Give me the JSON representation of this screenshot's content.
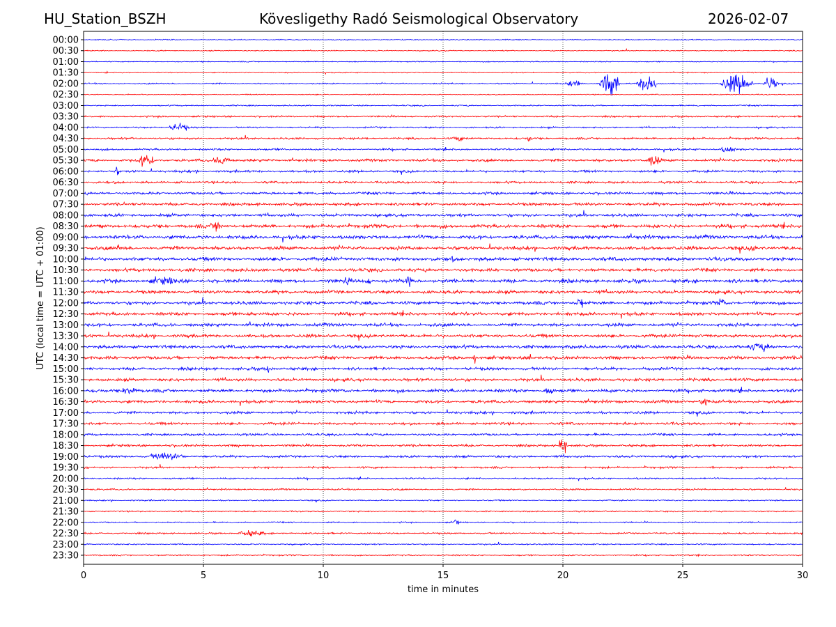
{
  "header": {
    "station": "HU_Station_BSZH",
    "observatory": "Kövesligethy Radó Seismological Observatory",
    "date": "2026-02-07"
  },
  "chart_data": {
    "type": "line",
    "title": "Kövesligethy Radó Seismological Observatory",
    "xlabel": "time in minutes",
    "ylabel": "UTC (local time = UTC + 01:00)",
    "xlim": [
      0,
      30
    ],
    "xticks": [
      0,
      5,
      10,
      15,
      20,
      25,
      30
    ],
    "grid": "vertical dotted at x ticks",
    "row_colors": [
      "#0000ff",
      "#ff0000"
    ],
    "rows": [
      "00:00",
      "00:30",
      "01:00",
      "01:30",
      "02:00",
      "02:30",
      "03:00",
      "03:30",
      "04:00",
      "04:30",
      "05:00",
      "05:30",
      "06:00",
      "06:30",
      "07:00",
      "07:30",
      "08:00",
      "08:30",
      "09:00",
      "09:30",
      "10:00",
      "10:30",
      "11:00",
      "11:30",
      "12:00",
      "12:30",
      "13:00",
      "13:30",
      "14:00",
      "14:30",
      "15:00",
      "15:30",
      "16:00",
      "16:30",
      "17:00",
      "17:30",
      "18:00",
      "18:30",
      "19:00",
      "19:30",
      "20:00",
      "20:30",
      "21:00",
      "21:30",
      "22:00",
      "22:30",
      "23:00",
      "23:30"
    ],
    "noise_level": [
      0.3,
      0.3,
      0.3,
      0.3,
      0.4,
      0.3,
      0.4,
      0.5,
      0.5,
      0.6,
      0.6,
      0.8,
      0.7,
      0.7,
      0.8,
      0.9,
      0.9,
      1.1,
      1.1,
      1.1,
      1.1,
      1.0,
      1.1,
      1.0,
      1.0,
      1.0,
      1.0,
      1.0,
      1.0,
      1.0,
      0.9,
      0.9,
      1.0,
      0.9,
      0.8,
      0.8,
      0.7,
      0.7,
      0.7,
      0.6,
      0.5,
      0.5,
      0.4,
      0.4,
      0.4,
      0.5,
      0.4,
      0.4
    ],
    "events": [
      {
        "row": 4,
        "start": 20.0,
        "end": 21.0,
        "amp": 2
      },
      {
        "row": 4,
        "start": 21.5,
        "end": 22.4,
        "amp": 9
      },
      {
        "row": 4,
        "start": 23.0,
        "end": 24.1,
        "amp": 5
      },
      {
        "row": 4,
        "start": 26.5,
        "end": 28.0,
        "amp": 7
      },
      {
        "row": 4,
        "start": 28.3,
        "end": 29.0,
        "amp": 5
      },
      {
        "row": 8,
        "start": 3.5,
        "end": 4.5,
        "amp": 3
      },
      {
        "row": 9,
        "start": 15.3,
        "end": 16.0,
        "amp": 2
      },
      {
        "row": 9,
        "start": 18.4,
        "end": 18.8,
        "amp": 2.5
      },
      {
        "row": 10,
        "start": 26.5,
        "end": 27.3,
        "amp": 2.5
      },
      {
        "row": 11,
        "start": 2.2,
        "end": 3.0,
        "amp": 5
      },
      {
        "row": 11,
        "start": 5.3,
        "end": 6.2,
        "amp": 3
      },
      {
        "row": 11,
        "start": 23.4,
        "end": 24.2,
        "amp": 4
      },
      {
        "row": 12,
        "start": 1.3,
        "end": 1.5,
        "amp": 4
      },
      {
        "row": 17,
        "start": 5.2,
        "end": 5.9,
        "amp": 4
      },
      {
        "row": 17,
        "start": 0.6,
        "end": 0.9,
        "amp": 3
      },
      {
        "row": 19,
        "start": 1.3,
        "end": 1.6,
        "amp": 3
      },
      {
        "row": 19,
        "start": 27.8,
        "end": 28.1,
        "amp": 3
      },
      {
        "row": 20,
        "start": 15.2,
        "end": 15.5,
        "amp": 3
      },
      {
        "row": 22,
        "start": 2.5,
        "end": 4.4,
        "amp": 3
      },
      {
        "row": 22,
        "start": 10.8,
        "end": 11.2,
        "amp": 4
      },
      {
        "row": 22,
        "start": 11.7,
        "end": 12.0,
        "amp": 3
      },
      {
        "row": 22,
        "start": 13.4,
        "end": 13.8,
        "amp": 6
      },
      {
        "row": 24,
        "start": 20.5,
        "end": 20.9,
        "amp": 5
      },
      {
        "row": 24,
        "start": 26.4,
        "end": 26.8,
        "amp": 4
      },
      {
        "row": 25,
        "start": 6.8,
        "end": 7.1,
        "amp": 3
      },
      {
        "row": 28,
        "start": 27.5,
        "end": 29.0,
        "amp": 3
      },
      {
        "row": 29,
        "start": 16.2,
        "end": 16.4,
        "amp": 4
      },
      {
        "row": 29,
        "start": 18.5,
        "end": 18.7,
        "amp": 4
      },
      {
        "row": 30,
        "start": 7.5,
        "end": 7.9,
        "amp": 3
      },
      {
        "row": 31,
        "start": 27.1,
        "end": 27.3,
        "amp": 3
      },
      {
        "row": 32,
        "start": 1.5,
        "end": 2.3,
        "amp": 3
      },
      {
        "row": 32,
        "start": 19.0,
        "end": 19.8,
        "amp": 2.5
      },
      {
        "row": 33,
        "start": 25.6,
        "end": 26.2,
        "amp": 3
      },
      {
        "row": 37,
        "start": 19.8,
        "end": 20.2,
        "amp": 7
      },
      {
        "row": 38,
        "start": 2.5,
        "end": 4.4,
        "amp": 3
      },
      {
        "row": 44,
        "start": 15.4,
        "end": 15.7,
        "amp": 3
      },
      {
        "row": 45,
        "start": 6.3,
        "end": 7.8,
        "amp": 2
      }
    ]
  }
}
